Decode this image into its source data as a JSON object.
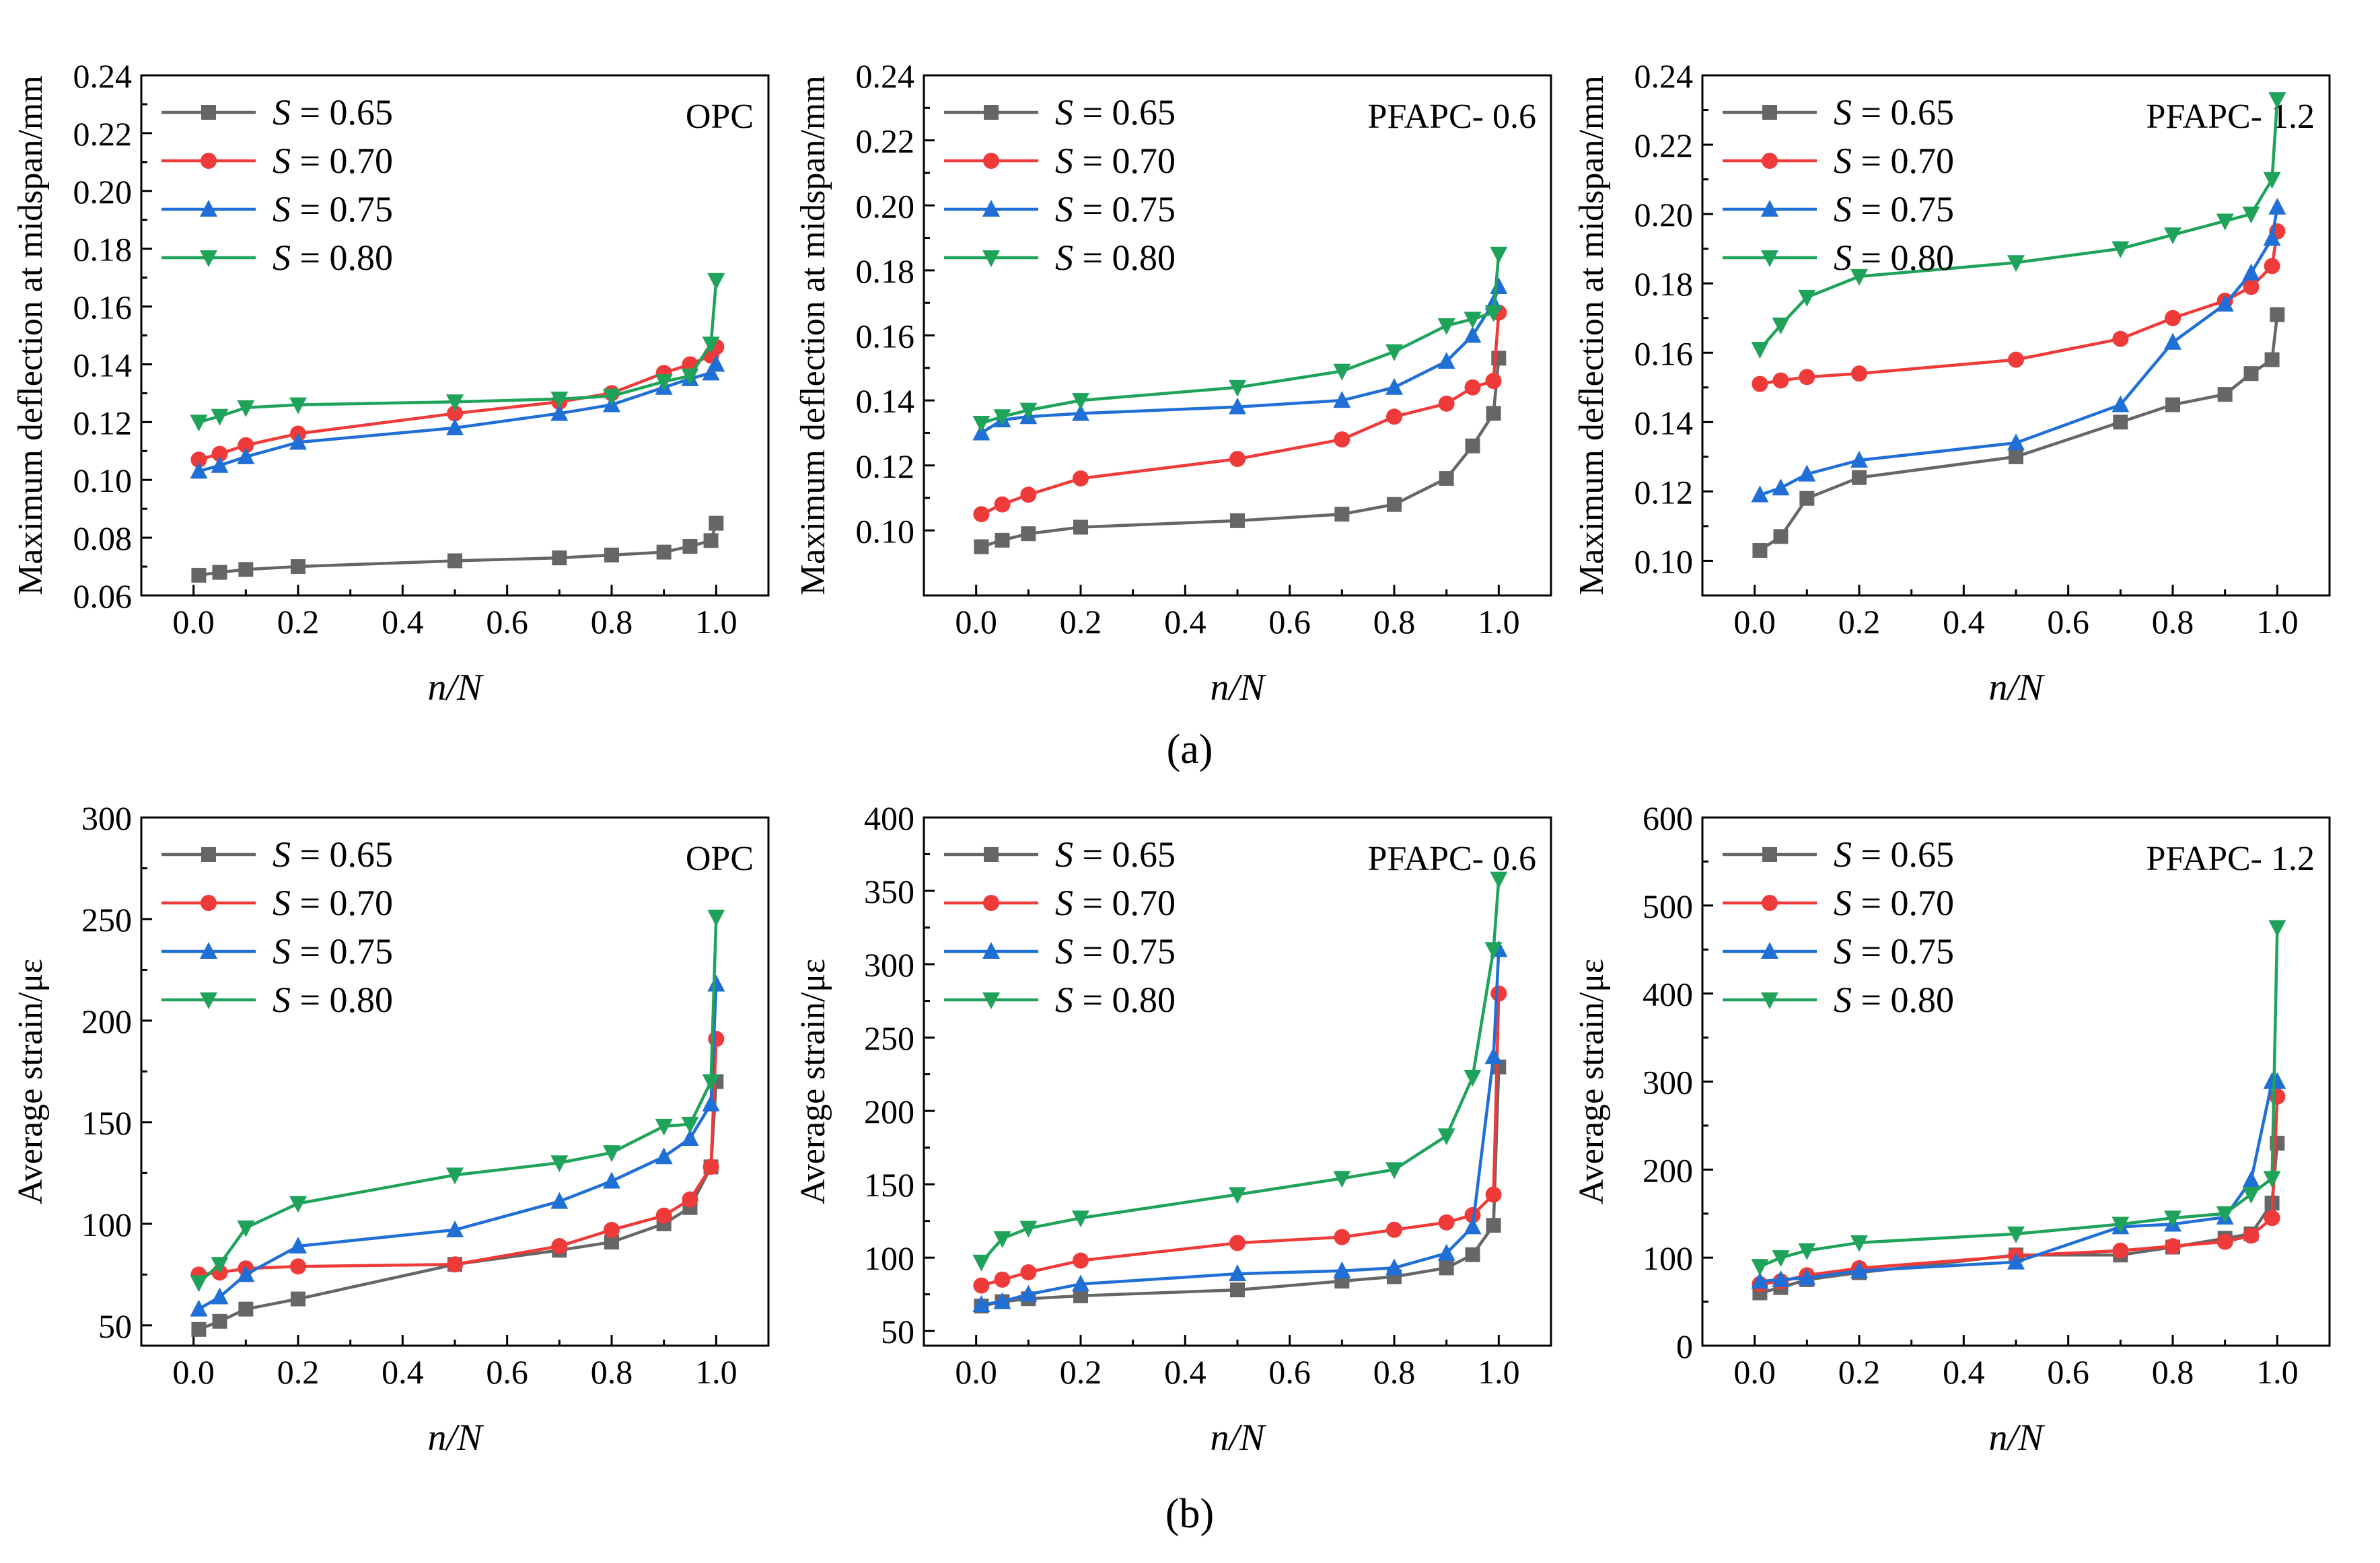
{
  "figure": {
    "panel_labels": [
      "(a)",
      "(b)"
    ],
    "legend_var": "S",
    "legend_eq": " = "
  },
  "colors": {
    "series": [
      "#666666",
      "#ef3a3a",
      "#1f6fd6",
      "#1fa35a"
    ]
  },
  "chart_data": [
    {
      "type": "line",
      "title": "OPC",
      "xlabel": "n/N",
      "ylabel": "Maximum deflection at midspan/mm",
      "xlim": [
        -0.1,
        1.1
      ],
      "ylim": [
        0.06,
        0.24
      ],
      "yticks": [
        "0.06",
        "0.08",
        "0.10",
        "0.12",
        "0.14",
        "0.16",
        "0.18",
        "0.20",
        "0.22",
        "0.24"
      ],
      "xticks": [
        "0.0",
        "0.2",
        "0.4",
        "0.6",
        "0.8",
        "1.0"
      ],
      "series": [
        {
          "name": "0.65",
          "marker": "square",
          "x": [
            0.01,
            0.05,
            0.1,
            0.2,
            0.5,
            0.7,
            0.8,
            0.9,
            0.95,
            0.99,
            1.0
          ],
          "values": [
            0.067,
            0.068,
            0.069,
            0.07,
            0.072,
            0.073,
            0.074,
            0.075,
            0.077,
            0.079,
            0.085
          ]
        },
        {
          "name": "0.70",
          "marker": "circle",
          "x": [
            0.01,
            0.05,
            0.1,
            0.2,
            0.5,
            0.7,
            0.8,
            0.9,
            0.95,
            0.99,
            1.0
          ],
          "values": [
            0.107,
            0.109,
            0.112,
            0.116,
            0.123,
            0.127,
            0.13,
            0.137,
            0.14,
            0.143,
            0.146
          ]
        },
        {
          "name": "0.75",
          "marker": "triangle",
          "x": [
            0.01,
            0.05,
            0.1,
            0.2,
            0.5,
            0.7,
            0.8,
            0.9,
            0.95,
            0.99,
            1.0
          ],
          "values": [
            0.103,
            0.105,
            0.108,
            0.113,
            0.118,
            0.123,
            0.126,
            0.132,
            0.135,
            0.137,
            0.14
          ]
        },
        {
          "name": "0.80",
          "marker": "triangle-down",
          "x": [
            0.01,
            0.05,
            0.1,
            0.2,
            0.5,
            0.7,
            0.8,
            0.9,
            0.95,
            0.99,
            1.0
          ],
          "values": [
            0.12,
            0.122,
            0.125,
            0.126,
            0.127,
            0.128,
            0.129,
            0.134,
            0.136,
            0.147,
            0.169
          ]
        }
      ]
    },
    {
      "type": "line",
      "title": "PFAPC- 0.6",
      "xlabel": "n/N",
      "ylabel": "Maximum deflection at midspan/mm",
      "xlim": [
        -0.1,
        1.1
      ],
      "ylim": [
        0.08,
        0.24
      ],
      "yticks": [
        "0.10",
        "0.12",
        "0.14",
        "0.16",
        "0.18",
        "0.20",
        "0.22",
        "0.24"
      ],
      "xticks": [
        "0.0",
        "0.2",
        "0.4",
        "0.6",
        "0.8",
        "1.0"
      ],
      "series": [
        {
          "name": "0.65",
          "marker": "square",
          "x": [
            0.01,
            0.05,
            0.1,
            0.2,
            0.5,
            0.7,
            0.8,
            0.9,
            0.95,
            0.99,
            1.0
          ],
          "values": [
            0.095,
            0.097,
            0.099,
            0.101,
            0.103,
            0.105,
            0.108,
            0.116,
            0.126,
            0.136,
            0.153
          ]
        },
        {
          "name": "0.70",
          "marker": "circle",
          "x": [
            0.01,
            0.05,
            0.1,
            0.2,
            0.5,
            0.7,
            0.8,
            0.9,
            0.95,
            0.99,
            1.0
          ],
          "values": [
            0.105,
            0.108,
            0.111,
            0.116,
            0.122,
            0.128,
            0.135,
            0.139,
            0.144,
            0.146,
            0.167
          ]
        },
        {
          "name": "0.75",
          "marker": "triangle",
          "x": [
            0.01,
            0.05,
            0.1,
            0.2,
            0.5,
            0.7,
            0.8,
            0.9,
            0.95,
            0.99,
            1.0
          ],
          "values": [
            0.13,
            0.134,
            0.135,
            0.136,
            0.138,
            0.14,
            0.144,
            0.152,
            0.16,
            0.17,
            0.175
          ]
        },
        {
          "name": "0.80",
          "marker": "triangle-down",
          "x": [
            0.01,
            0.05,
            0.1,
            0.2,
            0.5,
            0.7,
            0.8,
            0.9,
            0.95,
            0.99,
            1.0
          ],
          "values": [
            0.133,
            0.135,
            0.137,
            0.14,
            0.144,
            0.149,
            0.155,
            0.163,
            0.165,
            0.167,
            0.185
          ]
        }
      ]
    },
    {
      "type": "line",
      "title": "PFAPC- 1.2",
      "xlabel": "n/N",
      "ylabel": "Maximum deflection at midspan/mm",
      "xlim": [
        -0.1,
        1.1
      ],
      "ylim": [
        0.09,
        0.24
      ],
      "yticks": [
        "0.10",
        "0.12",
        "0.14",
        "0.16",
        "0.18",
        "0.20",
        "0.22",
        "0.24"
      ],
      "xticks": [
        "0.0",
        "0.2",
        "0.4",
        "0.6",
        "0.8",
        "1.0"
      ],
      "series": [
        {
          "name": "0.65",
          "marker": "square",
          "x": [
            0.01,
            0.05,
            0.1,
            0.2,
            0.5,
            0.7,
            0.8,
            0.9,
            0.95,
            0.99,
            1.0
          ],
          "values": [
            0.103,
            0.107,
            0.118,
            0.124,
            0.13,
            0.14,
            0.145,
            0.148,
            0.154,
            0.158,
            0.171
          ]
        },
        {
          "name": "0.70",
          "marker": "circle",
          "x": [
            0.01,
            0.05,
            0.1,
            0.2,
            0.5,
            0.7,
            0.8,
            0.9,
            0.95,
            0.99,
            1.0
          ],
          "values": [
            0.151,
            0.152,
            0.153,
            0.154,
            0.158,
            0.164,
            0.17,
            0.175,
            0.179,
            0.185,
            0.195
          ]
        },
        {
          "name": "0.75",
          "marker": "triangle",
          "x": [
            0.01,
            0.05,
            0.1,
            0.2,
            0.5,
            0.7,
            0.8,
            0.9,
            0.95,
            0.99,
            1.0
          ],
          "values": [
            0.119,
            0.121,
            0.125,
            0.129,
            0.134,
            0.145,
            0.163,
            0.174,
            0.183,
            0.193,
            0.202
          ]
        },
        {
          "name": "0.80",
          "marker": "triangle-down",
          "x": [
            0.01,
            0.05,
            0.1,
            0.2,
            0.5,
            0.7,
            0.8,
            0.9,
            0.95,
            0.99,
            1.0
          ],
          "values": [
            0.161,
            0.168,
            0.176,
            0.182,
            0.186,
            0.19,
            0.194,
            0.198,
            0.2,
            0.21,
            0.233
          ]
        }
      ]
    },
    {
      "type": "line",
      "title": "OPC",
      "xlabel": "n/N",
      "ylabel": "Average strain/με",
      "xlim": [
        -0.1,
        1.1
      ],
      "ylim": [
        40,
        300
      ],
      "yticks": [
        "50",
        "100",
        "150",
        "200",
        "250",
        "300"
      ],
      "xticks": [
        "0.0",
        "0.2",
        "0.4",
        "0.6",
        "0.8",
        "1.0"
      ],
      "series": [
        {
          "name": "0.65",
          "marker": "square",
          "x": [
            0.01,
            0.05,
            0.1,
            0.2,
            0.5,
            0.7,
            0.8,
            0.9,
            0.95,
            0.99,
            1.0
          ],
          "values": [
            48,
            52,
            58,
            63,
            80,
            87,
            91,
            100,
            108,
            128,
            170
          ]
        },
        {
          "name": "0.70",
          "marker": "circle",
          "x": [
            0.01,
            0.05,
            0.1,
            0.2,
            0.5,
            0.7,
            0.8,
            0.9,
            0.95,
            0.99,
            1.0
          ],
          "values": [
            75,
            76,
            78,
            79,
            80,
            89,
            97,
            104,
            112,
            128,
            191
          ]
        },
        {
          "name": "0.75",
          "marker": "triangle",
          "x": [
            0.01,
            0.05,
            0.1,
            0.2,
            0.5,
            0.7,
            0.8,
            0.9,
            0.95,
            0.99,
            1.0
          ],
          "values": [
            58,
            64,
            75,
            89,
            97,
            111,
            121,
            133,
            142,
            159,
            218
          ]
        },
        {
          "name": "0.80",
          "marker": "triangle-down",
          "x": [
            0.01,
            0.05,
            0.1,
            0.2,
            0.5,
            0.7,
            0.8,
            0.9,
            0.95,
            0.99,
            1.0
          ],
          "values": [
            71,
            80,
            98,
            110,
            124,
            130,
            135,
            148,
            149,
            170,
            251
          ]
        }
      ]
    },
    {
      "type": "line",
      "title": "PFAPC- 0.6",
      "xlabel": "n/N",
      "ylabel": "Average strain/με",
      "xlim": [
        -0.1,
        1.1
      ],
      "ylim": [
        40,
        400
      ],
      "yticks": [
        "50",
        "100",
        "150",
        "200",
        "250",
        "300",
        "350",
        "400"
      ],
      "xticks": [
        "0.0",
        "0.2",
        "0.4",
        "0.6",
        "0.8",
        "1.0"
      ],
      "series": [
        {
          "name": "0.65",
          "marker": "square",
          "x": [
            0.01,
            0.05,
            0.1,
            0.2,
            0.5,
            0.7,
            0.8,
            0.9,
            0.95,
            0.99,
            1.0
          ],
          "values": [
            67,
            70,
            72,
            74,
            78,
            84,
            87,
            93,
            102,
            122,
            230
          ]
        },
        {
          "name": "0.70",
          "marker": "circle",
          "x": [
            0.01,
            0.05,
            0.1,
            0.2,
            0.5,
            0.7,
            0.8,
            0.9,
            0.95,
            0.99,
            1.0
          ],
          "values": [
            81,
            85,
            90,
            98,
            110,
            114,
            119,
            124,
            129,
            143,
            280
          ]
        },
        {
          "name": "0.75",
          "marker": "triangle",
          "x": [
            0.01,
            0.05,
            0.1,
            0.2,
            0.5,
            0.7,
            0.8,
            0.9,
            0.95,
            0.99,
            1.0
          ],
          "values": [
            68,
            70,
            75,
            82,
            89,
            91,
            93,
            103,
            121,
            237,
            310
          ]
        },
        {
          "name": "0.80",
          "marker": "triangle-down",
          "x": [
            0.01,
            0.05,
            0.1,
            0.2,
            0.5,
            0.7,
            0.8,
            0.9,
            0.95,
            0.99,
            1.0
          ],
          "values": [
            97,
            113,
            120,
            127,
            143,
            154,
            160,
            183,
            223,
            310,
            358
          ]
        }
      ]
    },
    {
      "type": "line",
      "title": "PFAPC- 1.2",
      "xlabel": "n/N",
      "ylabel": "Average strain/με",
      "xlim": [
        -0.1,
        1.1
      ],
      "ylim": [
        0,
        600
      ],
      "yticks": [
        "0",
        "100",
        "200",
        "300",
        "400",
        "500",
        "600"
      ],
      "xticks": [
        "0.0",
        "0.2",
        "0.4",
        "0.6",
        "0.8",
        "1.0"
      ],
      "series": [
        {
          "name": "0.65",
          "marker": "square",
          "x": [
            0.01,
            0.05,
            0.1,
            0.2,
            0.5,
            0.7,
            0.8,
            0.9,
            0.95,
            0.99,
            1.0
          ],
          "values": [
            60,
            66,
            75,
            83,
            103,
            103,
            112,
            122,
            127,
            162,
            230
          ]
        },
        {
          "name": "0.70",
          "marker": "circle",
          "x": [
            0.01,
            0.05,
            0.1,
            0.2,
            0.5,
            0.7,
            0.8,
            0.9,
            0.95,
            0.99,
            1.0
          ],
          "values": [
            70,
            73,
            80,
            88,
            102,
            108,
            113,
            118,
            125,
            145,
            283
          ]
        },
        {
          "name": "0.75",
          "marker": "triangle",
          "x": [
            0.01,
            0.05,
            0.1,
            0.2,
            0.5,
            0.7,
            0.8,
            0.9,
            0.95,
            0.99,
            1.0
          ],
          "values": [
            73,
            75,
            77,
            85,
            95,
            135,
            138,
            146,
            188,
            300,
            300
          ]
        },
        {
          "name": "0.80",
          "marker": "triangle-down",
          "x": [
            0.01,
            0.05,
            0.1,
            0.2,
            0.5,
            0.7,
            0.8,
            0.9,
            0.95,
            0.99,
            1.0
          ],
          "values": [
            90,
            100,
            108,
            117,
            127,
            138,
            145,
            150,
            172,
            190,
            475
          ]
        }
      ]
    }
  ]
}
